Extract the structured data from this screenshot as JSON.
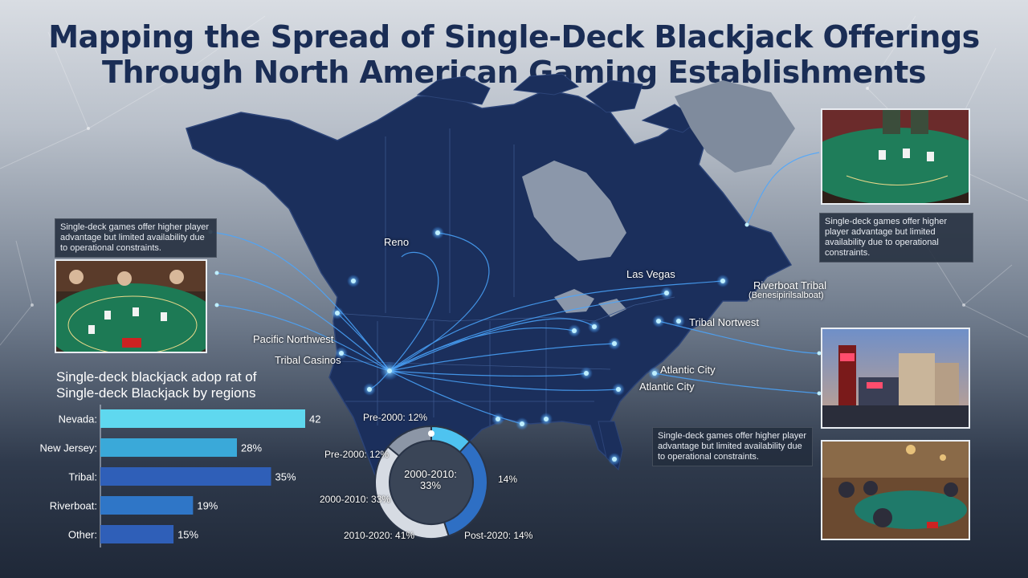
{
  "title": {
    "line1": "Mapping the Spread of Single-Deck Blackjack Offerings",
    "line2": "Through North American Gaming Establishments"
  },
  "notes": {
    "left": "Single-deck games offer higher player advantage but limited availability due to operational constraints.",
    "right_top": "Single-deck games offer higher player advantage but limited availability due to operational constraints.",
    "right_bottom": "Single-deck games offer higher player advantage but limited availability due to operational constraints."
  },
  "map_labels": {
    "reno": "Reno",
    "las_vegas": "Las Vegas",
    "riverboat_tribal": "Riverboat Tribal",
    "riverboat_sub": "(Benesipirilsalboat)",
    "tribal_nortwest": "Tribal Nortwest",
    "pacific_northwest": "Pacific Northwest",
    "tribal_casinos": "Tribal Casinos",
    "atlantic_city_1": "Atlantic City",
    "atlantic_city_2": "Atlantic City"
  },
  "icons": {
    "photo_table_left": "blackjack-table-photo",
    "photo_table_right": "blackjack-table-photo",
    "photo_strip": "casino-exterior-photo",
    "photo_room": "casino-room-photo"
  },
  "colors": {
    "map_fill": "#1b2f5c",
    "water": "#7f8ea3",
    "connector": "#4aa6ff",
    "bar_light": "#5fd8ef",
    "bar_dark": "#2f5fb8"
  },
  "chart_data": [
    {
      "type": "bar",
      "orientation": "horizontal",
      "title": "Single-deck blackjack adop rat of Single-deck Blackjack by regions",
      "categories": [
        "Nevada:",
        "New Jersey:",
        "Tribal:",
        "Riverboat:",
        "Other:"
      ],
      "values": [
        42,
        28,
        35,
        19,
        15
      ],
      "value_labels": [
        "42%",
        "28%",
        "35%",
        "19%",
        "15%"
      ],
      "xlim": [
        0,
        42
      ],
      "grid": false
    },
    {
      "type": "pie",
      "style": "donut",
      "center_label": "2000-2010: 33%",
      "slices": [
        {
          "label": "Pre-2000: 12%",
          "value": 12
        },
        {
          "label": "2000-2010: 33%",
          "value": 33
        },
        {
          "label": "2010-2020: 41%",
          "value": 41
        },
        {
          "label": "Post-2020: 14%",
          "value": 14
        }
      ],
      "extra_labels": [
        "Pre-2000: 12%",
        "14%"
      ]
    }
  ]
}
